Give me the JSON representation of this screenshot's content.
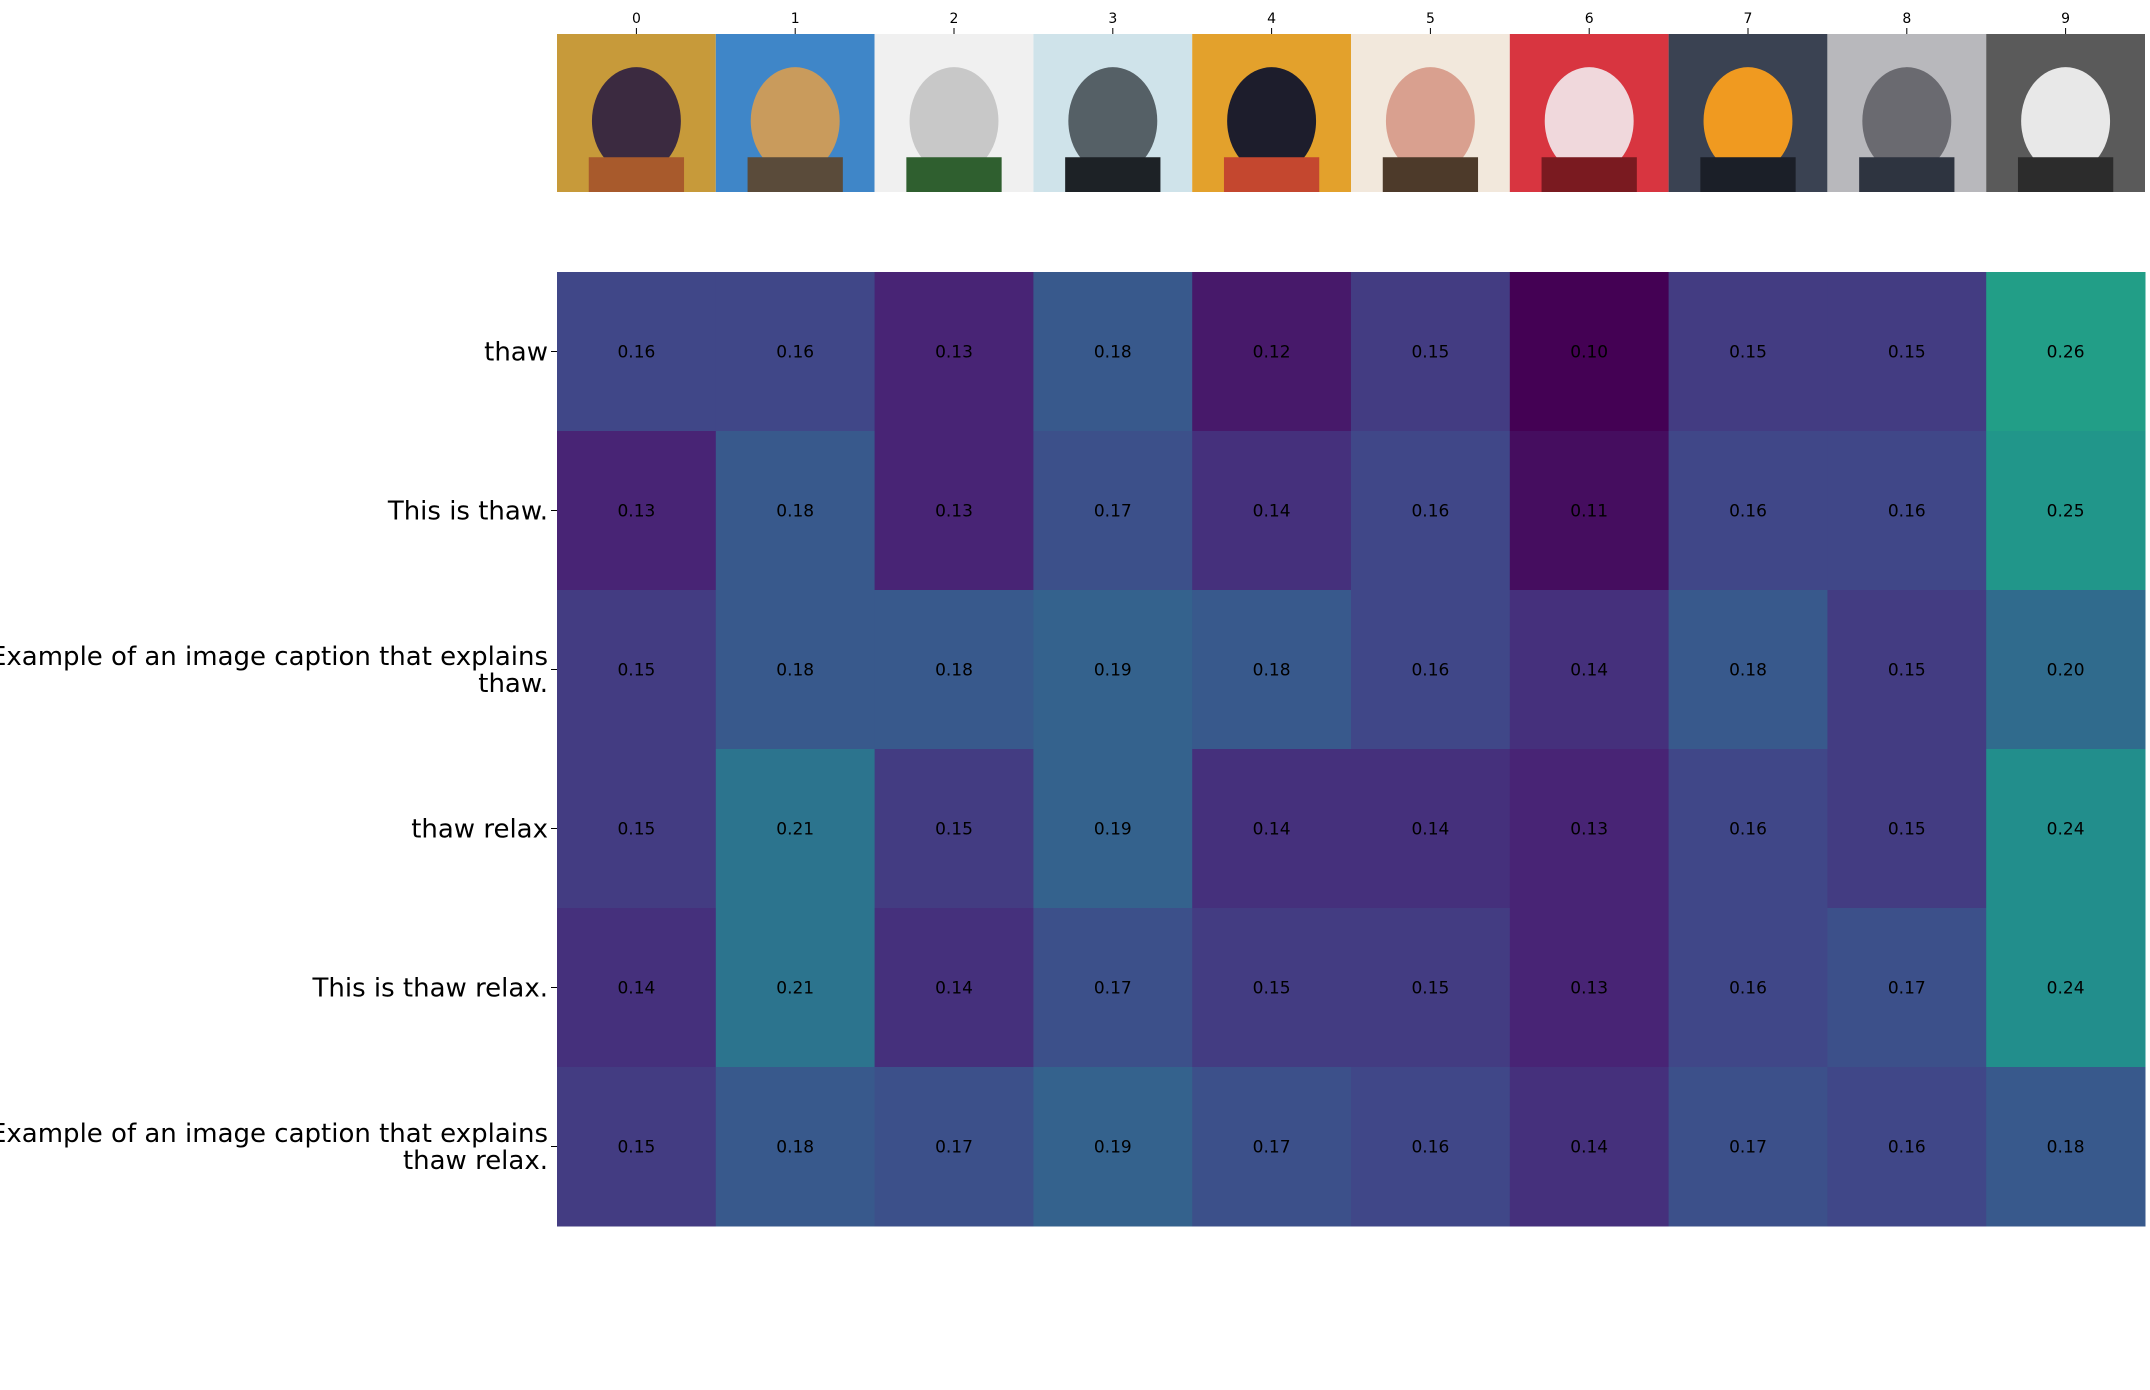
{
  "chart_data": {
    "type": "heatmap",
    "colormap": "viridis",
    "color_range": [
      0.1,
      0.26
    ],
    "columns": [
      "0",
      "1",
      "2",
      "3",
      "4",
      "5",
      "6",
      "7",
      "8",
      "9"
    ],
    "column_thumbnails": [
      {
        "icon": "painting-seated-figure",
        "colors": [
          "#c79a3a",
          "#3b2a40",
          "#a85a2c"
        ]
      },
      {
        "icon": "boots-on-desert",
        "colors": [
          "#3f86c8",
          "#c99b5c",
          "#5a4b3a"
        ]
      },
      {
        "icon": "eiffel-empire-state-figurines",
        "colors": [
          "#f0f0f0",
          "#c8c8c8",
          "#2f5f2f"
        ]
      },
      {
        "icon": "man-portrait-bw",
        "colors": [
          "#cfe3ea",
          "#556066",
          "#1d2226"
        ]
      },
      {
        "icon": "folk-art-painting",
        "colors": [
          "#e3a12c",
          "#1d1d2c",
          "#c4472f"
        ]
      },
      {
        "icon": "man-with-glasses",
        "colors": [
          "#f2e8dc",
          "#d9a08f",
          "#4d3a2a"
        ]
      },
      {
        "icon": "red-mannequins",
        "colors": [
          "#d83540",
          "#f0d8dc",
          "#7a1a20"
        ]
      },
      {
        "icon": "molten-metal-pouring",
        "colors": [
          "#3a4252",
          "#f09a20",
          "#1b1f28"
        ]
      },
      {
        "icon": "man-face-closeup",
        "colors": [
          "#b8b8bc",
          "#6a6a70",
          "#2e3440"
        ]
      },
      {
        "icon": "snow-on-pavement",
        "colors": [
          "#5a5a5a",
          "#e8e8e8",
          "#2c2c2c"
        ]
      }
    ],
    "rows": [
      [
        "thaw"
      ],
      [
        "This is thaw."
      ],
      [
        "Example of an image caption that explains",
        "thaw."
      ],
      [
        "thaw relax"
      ],
      [
        "This is thaw relax."
      ],
      [
        "Example of an image caption that explains",
        "thaw relax."
      ]
    ],
    "values": [
      [
        0.16,
        0.16,
        0.13,
        0.18,
        0.12,
        0.15,
        0.1,
        0.15,
        0.15,
        0.26
      ],
      [
        0.13,
        0.18,
        0.13,
        0.17,
        0.14,
        0.16,
        0.11,
        0.16,
        0.16,
        0.25
      ],
      [
        0.15,
        0.18,
        0.18,
        0.19,
        0.18,
        0.16,
        0.14,
        0.18,
        0.15,
        0.2
      ],
      [
        0.15,
        0.21,
        0.15,
        0.19,
        0.14,
        0.14,
        0.13,
        0.16,
        0.15,
        0.24
      ],
      [
        0.14,
        0.21,
        0.14,
        0.17,
        0.15,
        0.15,
        0.13,
        0.16,
        0.17,
        0.24
      ],
      [
        0.15,
        0.18,
        0.17,
        0.19,
        0.17,
        0.16,
        0.14,
        0.17,
        0.16,
        0.18
      ]
    ]
  }
}
